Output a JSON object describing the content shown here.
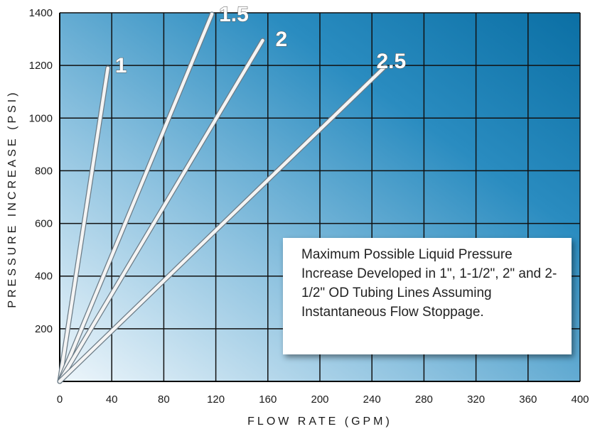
{
  "chart_data": {
    "type": "line",
    "title": "",
    "xlabel": "FLOW RATE (GPM)",
    "ylabel": "PRESSURE INCREASE (PSI)",
    "xlim": [
      0,
      400
    ],
    "ylim": [
      0,
      1400
    ],
    "xticks": [
      0,
      40,
      80,
      120,
      160,
      200,
      240,
      280,
      320,
      360,
      400
    ],
    "yticks": [
      200,
      400,
      600,
      800,
      1000,
      1200,
      1400
    ],
    "grid": true,
    "colors": {
      "bg_dark": "#0b6fa4",
      "bg_light": "#e4f1f9",
      "grid": "#111111",
      "line": "#f4f4f4"
    },
    "series": [
      {
        "name": "1",
        "x": [
          0,
          37
        ],
        "y": [
          0,
          1190
        ]
      },
      {
        "name": "1.5",
        "x": [
          0,
          117
        ],
        "y": [
          0,
          1395
        ]
      },
      {
        "name": "2",
        "x": [
          0,
          156
        ],
        "y": [
          0,
          1295
        ]
      },
      {
        "name": "2.5",
        "x": [
          0,
          250
        ],
        "y": [
          0,
          1195
        ]
      }
    ],
    "annotation": "Maximum Possible Liquid Pressure Increase Developed in 1\", 1-1/2\", 2\" and 2-1/2\" OD Tubing Lines Assuming Instantaneous Flow Stoppage."
  }
}
